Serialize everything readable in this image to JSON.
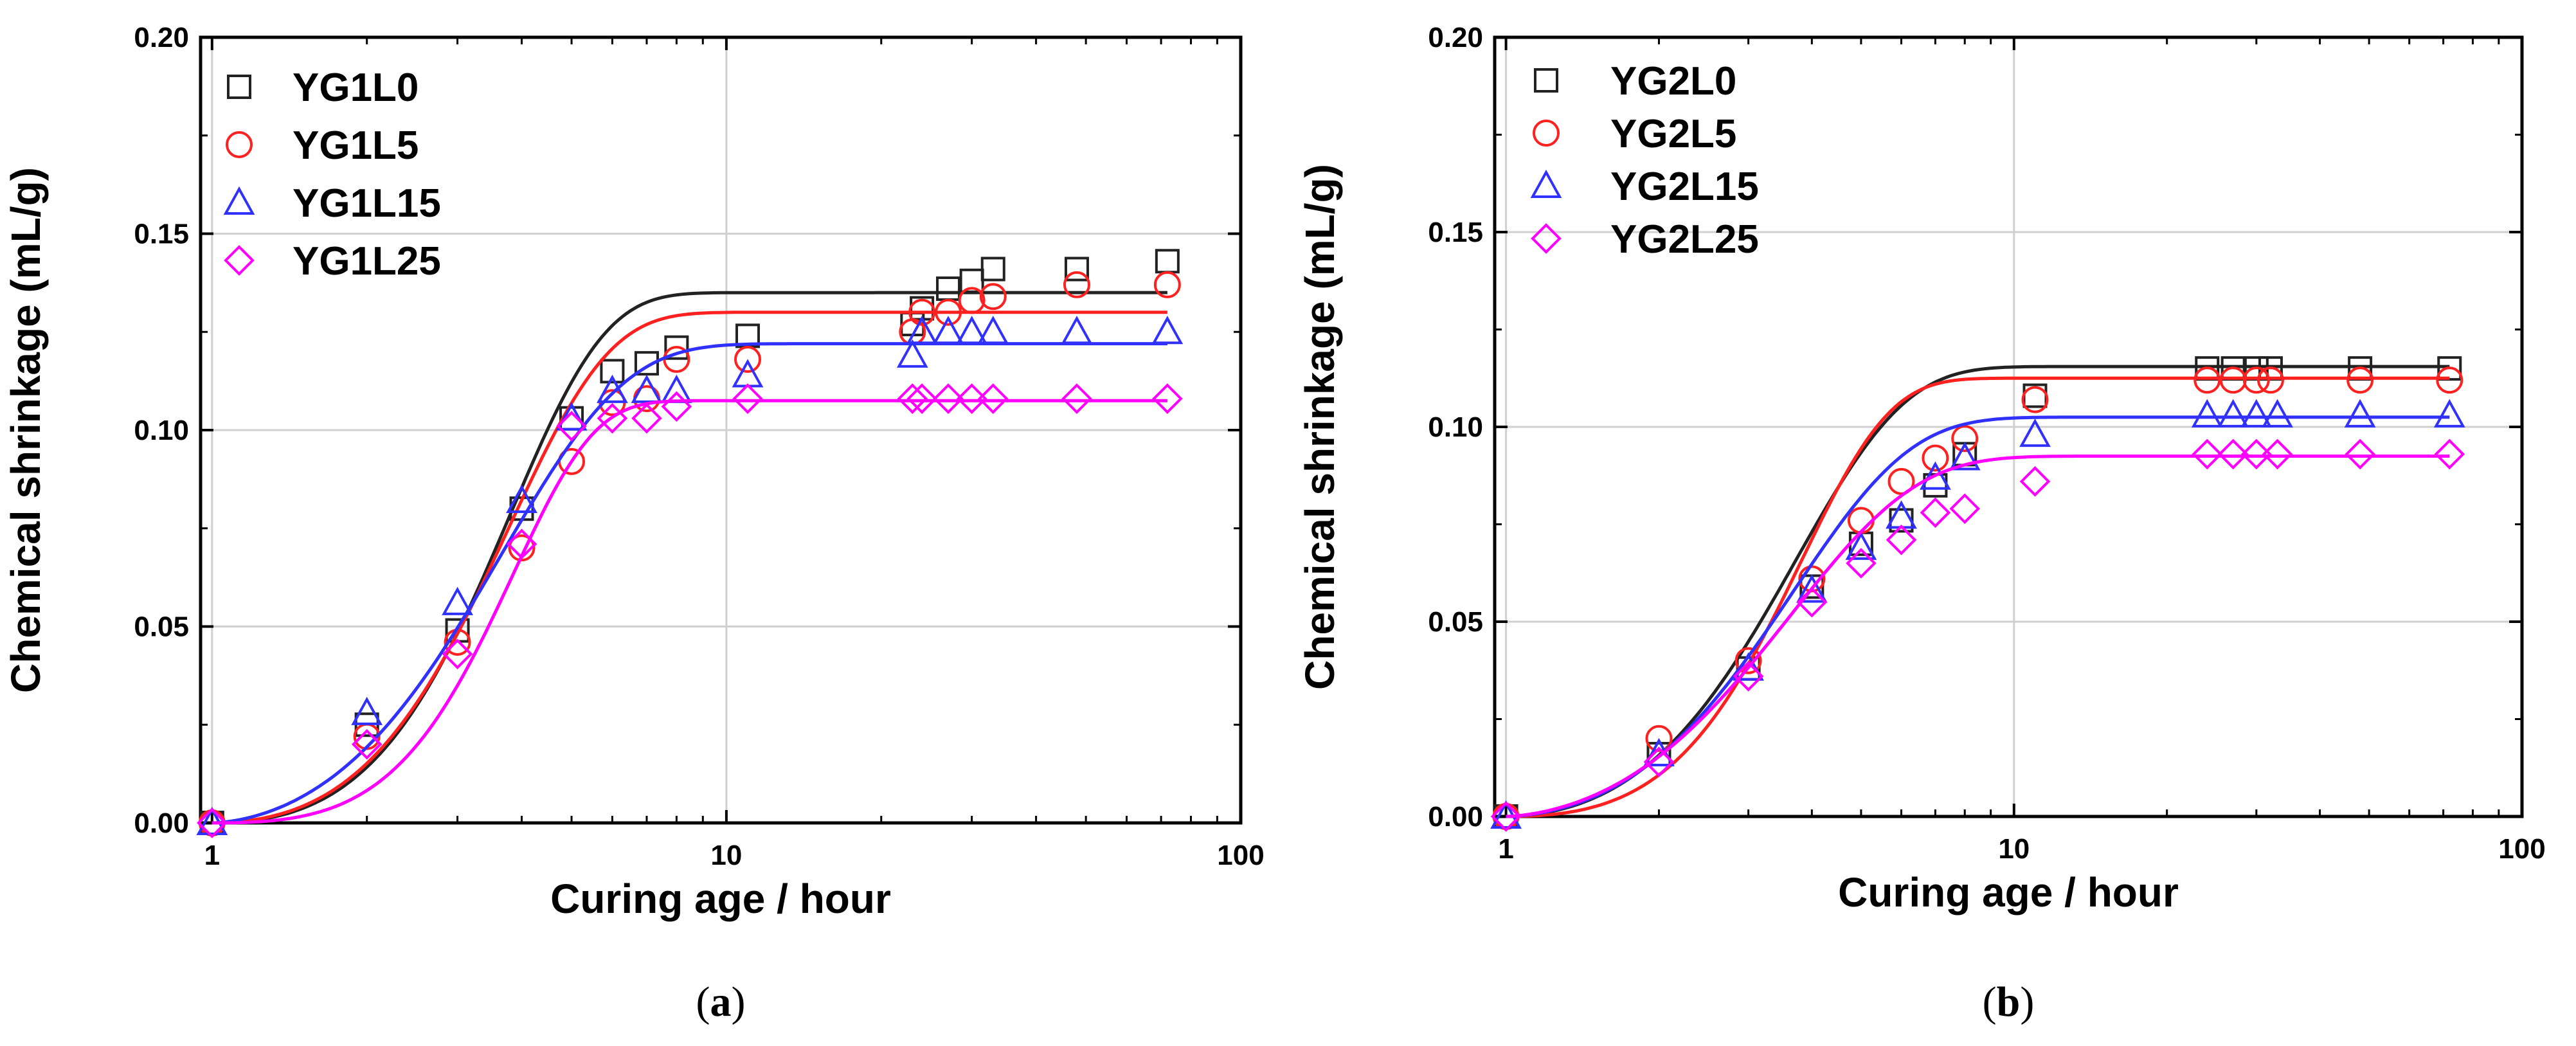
{
  "chart_data": [
    {
      "type": "scatter",
      "panel": "a",
      "caption": {
        "open": "(",
        "letter": "a",
        "close": ")"
      },
      "xlabel": "Curing age / hour",
      "ylabel": "Chemical shrinkage (mL/g)",
      "xscale": "log",
      "xlim": [
        0.95,
        100
      ],
      "ylim": [
        0,
        0.2
      ],
      "xticks": [
        1,
        10,
        100
      ],
      "xtick_labels": [
        "1",
        "10",
        "100"
      ],
      "yticks": [
        0,
        0.05,
        0.1,
        0.15,
        0.2
      ],
      "ytick_labels": [
        "0.00",
        "0.05",
        "0.10",
        "0.15",
        "0.20"
      ],
      "grid": true,
      "legend_position": "top-left",
      "series": [
        {
          "name": "YG1L0",
          "color": "#222222",
          "marker": "square",
          "x": [
            1,
            2,
            3,
            4,
            5,
            6,
            7,
            8,
            11,
            23,
            24,
            27,
            30,
            33,
            48,
            72
          ],
          "y": [
            0,
            0.025,
            0.049,
            0.08,
            0.103,
            0.115,
            0.117,
            0.121,
            0.124,
            0.127,
            0.131,
            0.136,
            0.138,
            0.141,
            0.141,
            0.143
          ],
          "fit": {
            "max": 0.135,
            "k": 2.0,
            "t0": 1
          }
        },
        {
          "name": "YG1L5",
          "color": "#ff2020",
          "marker": "circle",
          "x": [
            1,
            2,
            3,
            4,
            5,
            6,
            7,
            8,
            11,
            23,
            24,
            27,
            30,
            33,
            48,
            72
          ],
          "y": [
            0,
            0.022,
            0.046,
            0.07,
            0.092,
            0.107,
            0.108,
            0.118,
            0.118,
            0.125,
            0.13,
            0.13,
            0.133,
            0.134,
            0.137,
            0.137
          ],
          "fit": {
            "max": 0.13,
            "k": 1.9,
            "t0": 1
          }
        },
        {
          "name": "YG1L15",
          "color": "#3030ff",
          "marker": "triangle",
          "x": [
            1,
            2,
            3,
            4,
            5,
            6,
            7,
            8,
            11,
            23,
            24,
            27,
            30,
            33,
            48,
            72
          ],
          "y": [
            0,
            0.028,
            0.056,
            0.082,
            0.103,
            0.11,
            0.11,
            0.11,
            0.114,
            0.119,
            0.125,
            0.125,
            0.125,
            0.125,
            0.125,
            0.125
          ],
          "fit": {
            "max": 0.122,
            "k": 1.6,
            "t0": 1
          }
        },
        {
          "name": "YG1L25",
          "color": "#ff00ff",
          "marker": "diamond",
          "x": [
            1,
            2,
            3,
            4,
            5,
            6,
            7,
            8,
            11,
            23,
            24,
            27,
            30,
            33,
            48,
            72
          ],
          "y": [
            0,
            0.02,
            0.043,
            0.071,
            0.101,
            0.103,
            0.103,
            0.106,
            0.108,
            0.108,
            0.108,
            0.108,
            0.108,
            0.108,
            0.108,
            0.108
          ],
          "fit": {
            "max": 0.1075,
            "k": 2.3,
            "t0": 1
          }
        }
      ]
    },
    {
      "type": "scatter",
      "panel": "b",
      "caption": {
        "open": "(",
        "letter": "b",
        "close": ")"
      },
      "xlabel": "Curing age / hour",
      "ylabel": "Chemical shrinkage (mL/g)",
      "xscale": "log",
      "xlim": [
        0.95,
        100
      ],
      "ylim": [
        0,
        0.2
      ],
      "xticks": [
        1,
        10,
        100
      ],
      "xtick_labels": [
        "1",
        "10",
        "100"
      ],
      "yticks": [
        0,
        0.05,
        0.1,
        0.15,
        0.2
      ],
      "ytick_labels": [
        "0.00",
        "0.05",
        "0.10",
        "0.15",
        "0.20"
      ],
      "grid": true,
      "legend_position": "top-left",
      "series": [
        {
          "name": "YG2L0",
          "color": "#222222",
          "marker": "square",
          "x": [
            1,
            2,
            3,
            4,
            5,
            6,
            7,
            8,
            11,
            24,
            27,
            30,
            32,
            48,
            72
          ],
          "y": [
            0,
            0.016,
            0.038,
            0.059,
            0.07,
            0.076,
            0.085,
            0.093,
            0.108,
            0.115,
            0.115,
            0.115,
            0.115,
            0.115,
            0.115
          ],
          "fit": {
            "max": 0.1155,
            "k": 1.75,
            "t0": 1
          }
        },
        {
          "name": "YG2L5",
          "color": "#ff2020",
          "marker": "circle",
          "x": [
            1,
            2,
            3,
            4,
            5,
            6,
            7,
            8,
            11,
            24,
            27,
            30,
            32,
            48,
            72
          ],
          "y": [
            0,
            0.02,
            0.04,
            0.061,
            0.076,
            0.086,
            0.092,
            0.097,
            0.107,
            0.112,
            0.112,
            0.112,
            0.112,
            0.112,
            0.112
          ],
          "fit": {
            "max": 0.1125,
            "k": 2.1,
            "t0": 1
          }
        },
        {
          "name": "YG2L15",
          "color": "#3030ff",
          "marker": "triangle",
          "x": [
            1,
            2,
            3,
            4,
            5,
            6,
            7,
            8,
            11,
            24,
            27,
            30,
            33,
            48,
            72
          ],
          "y": [
            0,
            0.016,
            0.038,
            0.058,
            0.069,
            0.077,
            0.087,
            0.092,
            0.098,
            0.103,
            0.103,
            0.103,
            0.103,
            0.103,
            0.103
          ],
          "fit": {
            "max": 0.1025,
            "k": 1.65,
            "t0": 1
          }
        },
        {
          "name": "YG2L25",
          "color": "#ff00ff",
          "marker": "diamond",
          "x": [
            1,
            2,
            3,
            4,
            5,
            6,
            7,
            8,
            11,
            24,
            27,
            30,
            33,
            48,
            72
          ],
          "y": [
            0,
            0.014,
            0.036,
            0.055,
            0.065,
            0.071,
            0.078,
            0.079,
            0.086,
            0.093,
            0.093,
            0.093,
            0.093,
            0.093,
            0.093
          ],
          "fit": {
            "max": 0.0925,
            "k": 1.55,
            "t0": 1
          }
        }
      ]
    }
  ]
}
